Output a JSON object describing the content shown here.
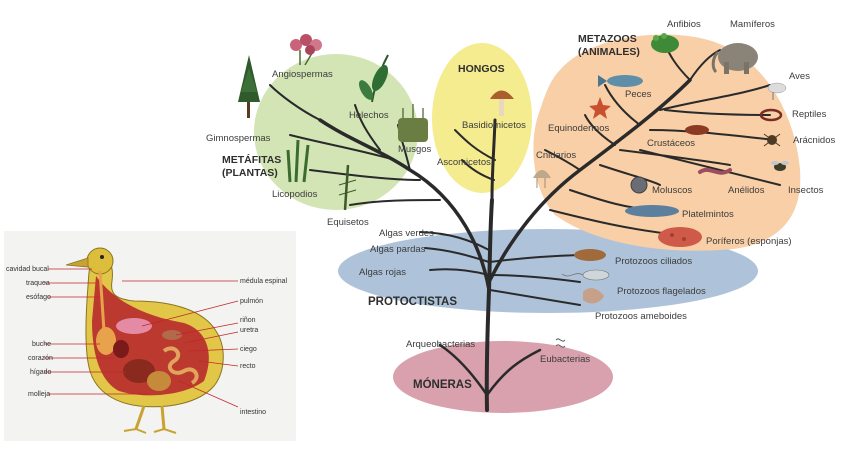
{
  "tree": {
    "groups": {
      "metafitas": [
        "METÁFITAS",
        "(PLANTAS)"
      ],
      "hongos": "HONGOS",
      "metazoos": [
        "METAZOOS",
        "(ANIMALES)"
      ],
      "protoctistas": "PROTOCTISTAS",
      "moneras": "MÓNERAS"
    },
    "plants": {
      "angiospermas": "Angiospermas",
      "gimnospermas": "Gimnospermas",
      "helechos": "Helechos",
      "musgos": "Musgos",
      "licopodios": "Licopodios",
      "equisetos": "Equisetos"
    },
    "fungi": {
      "basidiomicetos": "Basidiomicetos",
      "ascomicetos": "Ascomicetos"
    },
    "animals": {
      "anfibios": "Anfibios",
      "mamiferos": "Mamíferos",
      "aves": "Aves",
      "peces": "Peces",
      "reptiles": "Reptiles",
      "equinodermos": "Equinodermos",
      "cnidarios": "Cnidarios",
      "crustaceos": "Crustáceos",
      "aracnidos": "Arácnidos",
      "moluscos": "Moluscos",
      "anelidos": "Anélidos",
      "insectos": "Insectos",
      "platelmintos": "Platelmintos",
      "poriferos": "Poríferos (esponjas)"
    },
    "protists": {
      "algas_verdes": "Algas verdes",
      "algas_pardas": "Algas pardas",
      "algas_rojas": "Algas rojas",
      "protozoos_ciliados": "Protozoos ciliados",
      "protozoos_flagelados": "Protozoos flagelados",
      "protozoos_ameboides": "Protozoos ameboides"
    },
    "monera": {
      "arqueobacterias": "Arqueobacterias",
      "eubacterias": "Eubacterias"
    },
    "colors": {
      "plants_bg": "#d3e4b5",
      "fungi_bg": "#f4ec8e",
      "animals_bg": "#f8cfa6",
      "protists_bg": "#aec3da",
      "monera_bg": "#d8a1ad"
    }
  },
  "bird": {
    "labels": {
      "cavidad_bucal": "cavidad bucal",
      "traquea": "traquea",
      "esofago": "esófago",
      "buche": "buche",
      "corazon": "corazón",
      "higado": "hígado",
      "molleja": "molleja",
      "medula_espinal": "médula espinal",
      "pulmon": "pulmón",
      "rinon": "riñon",
      "uretra": "uretra",
      "ciego": "ciego",
      "recto": "recto",
      "intestino": "intestino"
    }
  }
}
